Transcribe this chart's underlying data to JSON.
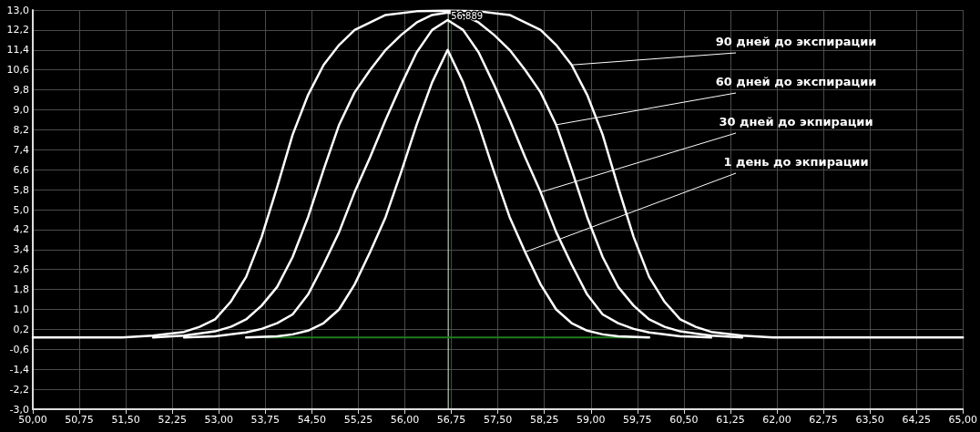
{
  "chart_data": {
    "type": "line",
    "xlim": [
      50,
      65
    ],
    "xticks": [
      {
        "value": 50,
        "label": "50,00"
      },
      {
        "value": 50.75,
        "label": "50,75"
      },
      {
        "value": 51.5,
        "label": "51,50"
      },
      {
        "value": 52.25,
        "label": "52,25"
      },
      {
        "value": 53,
        "label": "53,00"
      },
      {
        "value": 53.75,
        "label": "53,75"
      },
      {
        "value": 54.5,
        "label": "54,50"
      },
      {
        "value": 55.25,
        "label": "55,25"
      },
      {
        "value": 56,
        "label": "56,00"
      },
      {
        "value": 56.75,
        "label": "56,75"
      },
      {
        "value": 57.5,
        "label": "57,50"
      },
      {
        "value": 58.25,
        "label": "58,25"
      },
      {
        "value": 59,
        "label": "59,00"
      },
      {
        "value": 59.75,
        "label": "59,75"
      },
      {
        "value": 60.5,
        "label": "60,50"
      },
      {
        "value": 61.25,
        "label": "61,25"
      },
      {
        "value": 62,
        "label": "62,00"
      },
      {
        "value": 62.75,
        "label": "62,75"
      },
      {
        "value": 63.5,
        "label": "63,50"
      },
      {
        "value": 64.25,
        "label": "64,25"
      },
      {
        "value": 65,
        "label": "65,00"
      }
    ],
    "ylim": [
      -3,
      13
    ],
    "yticks": [
      {
        "value": -3,
        "label": "-3,0"
      },
      {
        "value": -2.2,
        "label": "-2,2"
      },
      {
        "value": -1.4,
        "label": "-1,4"
      },
      {
        "value": -0.6,
        "label": "-0,6"
      },
      {
        "value": 0.2,
        "label": "0,2"
      },
      {
        "value": 1,
        "label": "1,0"
      },
      {
        "value": 1.8,
        "label": "1,8"
      },
      {
        "value": 2.6,
        "label": "2,6"
      },
      {
        "value": 3.4,
        "label": "3,4"
      },
      {
        "value": 4.2,
        "label": "4,2"
      },
      {
        "value": 5,
        "label": "5,0"
      },
      {
        "value": 5.8,
        "label": "5,8"
      },
      {
        "value": 6.6,
        "label": "6,6"
      },
      {
        "value": 7.4,
        "label": "7,4"
      },
      {
        "value": 8.2,
        "label": "8,2"
      },
      {
        "value": 9,
        "label": "9,0"
      },
      {
        "value": 9.8,
        "label": "9,8"
      },
      {
        "value": 10.6,
        "label": "10,6"
      },
      {
        "value": 11.4,
        "label": "11,4"
      },
      {
        "value": 12.2,
        "label": "12,2"
      },
      {
        "value": 13,
        "label": "13,0"
      }
    ],
    "grid": true,
    "marker": "none",
    "line_style": "solid",
    "ref_lines": [
      {
        "axis": "x",
        "value": 56.7,
        "color": "#d8f0d8"
      }
    ],
    "annotations": [
      {
        "text": "90 дней до экспирации",
        "x": 58.69,
        "y": 10.8
      },
      {
        "text": "60 дней до экспирации",
        "x": 58.44,
        "y": 8.4
      },
      {
        "text": "30 дней до экпирации",
        "x": 58.19,
        "y": 5.7
      },
      {
        "text": "1 день до экпирации",
        "x": 57.94,
        "y": 3.3
      },
      {
        "text": "56,889",
        "x": 56.7,
        "y": 13
      }
    ],
    "series": [
      {
        "color": "#1e7a1e",
        "x": [
          53.75,
          59.9
        ],
        "values": [
          -0.12,
          -0.12
        ]
      },
      {
        "color": "#ffffff",
        "x": [
          50,
          51.44,
          51.94,
          52.44,
          52.69,
          52.94,
          53.19,
          53.44,
          53.69,
          53.94,
          54.19,
          54.44,
          54.69,
          54.94,
          55.19,
          55.69,
          56.19,
          56.69,
          57.19,
          57.69,
          58.19,
          58.44,
          58.69,
          58.94,
          59.19,
          59.44,
          59.69,
          59.94,
          60.19,
          60.44,
          60.69,
          60.94,
          61.44,
          61.94,
          65
        ],
        "values": [
          -0.12,
          -0.12,
          -0.05,
          0.1,
          0.3,
          0.6,
          1.3,
          2.3,
          3.9,
          5.9,
          8.0,
          9.6,
          10.8,
          11.6,
          12.2,
          12.8,
          12.95,
          12.97,
          12.95,
          12.8,
          12.2,
          11.6,
          10.8,
          9.6,
          8.0,
          5.9,
          3.9,
          2.3,
          1.3,
          0.6,
          0.3,
          0.1,
          -0.05,
          -0.12,
          -0.12
        ]
      },
      {
        "color": "#ffffff",
        "x": [
          51.94,
          52.44,
          52.94,
          53.19,
          53.44,
          53.69,
          53.94,
          54.19,
          54.44,
          54.69,
          54.94,
          55.19,
          55.44,
          55.69,
          55.94,
          56.19,
          56.44,
          56.69,
          56.94,
          57.19,
          57.44,
          57.69,
          57.94,
          58.19,
          58.44,
          58.69,
          58.94,
          59.19,
          59.44,
          59.69,
          59.94,
          60.19,
          60.44,
          60.94,
          61.44
        ],
        "values": [
          -0.12,
          -0.05,
          0.12,
          0.3,
          0.6,
          1.15,
          1.9,
          3.1,
          4.7,
          6.6,
          8.4,
          9.7,
          10.6,
          11.4,
          12.0,
          12.5,
          12.8,
          12.9,
          12.8,
          12.5,
          12.0,
          11.4,
          10.6,
          9.7,
          8.4,
          6.6,
          4.7,
          3.1,
          1.9,
          1.15,
          0.6,
          0.3,
          0.12,
          -0.05,
          -0.12
        ]
      },
      {
        "color": "#ffffff",
        "x": [
          52.44,
          52.94,
          53.44,
          53.69,
          53.94,
          54.19,
          54.44,
          54.69,
          54.94,
          55.19,
          55.44,
          55.69,
          55.94,
          56.19,
          56.44,
          56.69,
          56.94,
          57.19,
          57.44,
          57.69,
          57.94,
          58.19,
          58.44,
          58.69,
          58.94,
          59.19,
          59.44,
          59.69,
          59.94,
          60.44,
          60.94
        ],
        "values": [
          -0.12,
          -0.08,
          0.08,
          0.22,
          0.45,
          0.8,
          1.6,
          2.8,
          4.1,
          5.7,
          7.1,
          8.6,
          10.0,
          11.3,
          12.2,
          12.6,
          12.2,
          11.3,
          10.0,
          8.6,
          7.1,
          5.7,
          4.1,
          2.8,
          1.6,
          0.8,
          0.45,
          0.22,
          0.08,
          -0.08,
          -0.12
        ]
      },
      {
        "color": "#ffffff",
        "x": [
          53.44,
          53.94,
          54.19,
          54.44,
          54.69,
          54.94,
          55.19,
          55.44,
          55.69,
          55.94,
          56.19,
          56.44,
          56.69,
          56.94,
          57.19,
          57.44,
          57.69,
          57.94,
          58.19,
          58.44,
          58.69,
          58.94,
          59.19,
          59.44,
          59.94
        ],
        "values": [
          -0.12,
          -0.08,
          0.0,
          0.15,
          0.45,
          1.0,
          2.0,
          3.3,
          4.7,
          6.5,
          8.4,
          10.1,
          11.4,
          10.1,
          8.4,
          6.5,
          4.7,
          3.3,
          2.0,
          1.0,
          0.45,
          0.15,
          0.0,
          -0.08,
          -0.12
        ]
      }
    ]
  }
}
